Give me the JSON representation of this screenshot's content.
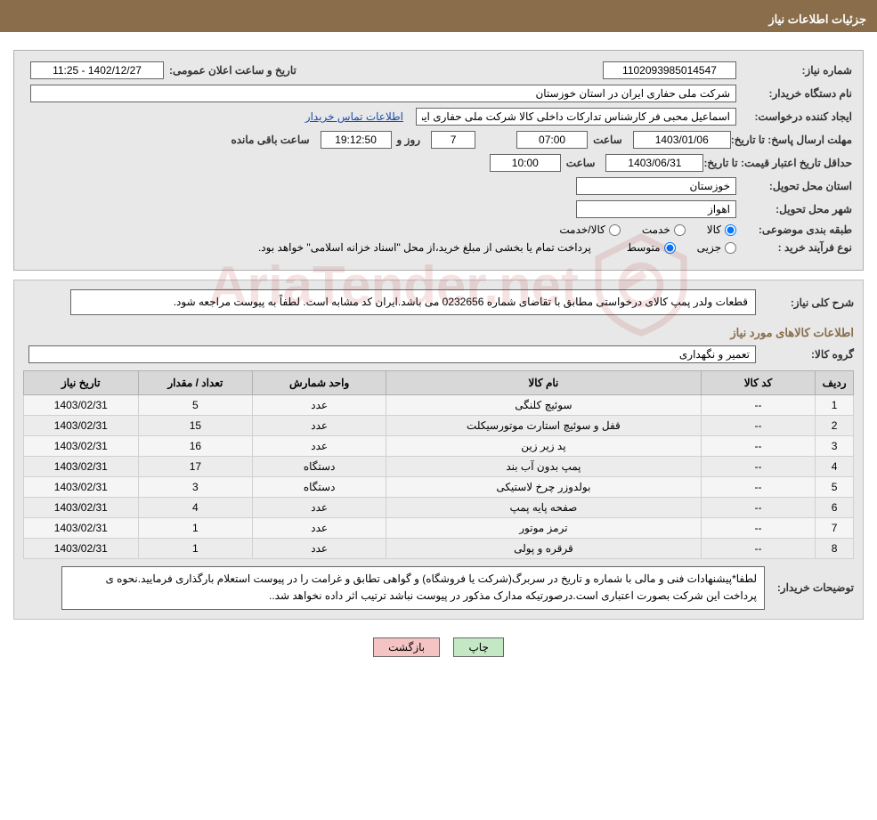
{
  "title_bar": "جزئیات اطلاعات نیاز",
  "fields": {
    "need_number_label": "شماره نیاز:",
    "need_number": "1102093985014547",
    "announce_label": "تاریخ و ساعت اعلان عمومی:",
    "announce_value": "1402/12/27 - 11:25",
    "buyer_org_label": "نام دستگاه خریدار:",
    "buyer_org": "شرکت ملی حفاری ایران در استان خوزستان",
    "requester_label": "ایجاد کننده درخواست:",
    "requester": "اسماعیل محبی فر کارشناس تدارکات داخلی کالا شرکت ملی حفاری ایران در اس",
    "contact_link": "اطلاعات تماس خریدار",
    "deadline_label": "مهلت ارسال پاسخ: تا تاریخ:",
    "deadline_date": "1403/01/06",
    "time_label": "ساعت",
    "deadline_time": "07:00",
    "days_remain": "7",
    "days_remain_label": "روز و",
    "time_remain": "19:12:50",
    "time_remain_label": "ساعت باقی مانده",
    "price_valid_label": "حداقل تاریخ اعتبار قیمت: تا تاریخ:",
    "price_valid_date": "1403/06/31",
    "price_valid_time": "10:00",
    "province_label": "استان محل تحویل:",
    "province": "خوزستان",
    "city_label": "شهر محل تحویل:",
    "city": "اهواز",
    "category_label": "طبقه بندی موضوعی:",
    "category_options": {
      "goods": "کالا",
      "service": "خدمت",
      "goods_service": "کالا/خدمت"
    },
    "purchase_type_label": "نوع فرآیند خرید :",
    "purchase_type_options": {
      "partial": "جزیی",
      "medium": "متوسط"
    },
    "purchase_note": "پرداخت تمام یا بخشی از مبلغ خرید،از محل \"اسناد خزانه اسلامی\" خواهد بود."
  },
  "need_desc": {
    "label": "شرح کلی نیاز:",
    "text": "قطعات ولدر پمپ کالای درخواستی مطابق با تقاضای شماره 0232656 می باشد.ایران کد مشابه است. لطفاً به پیوست مراجعه شود."
  },
  "items_section": {
    "title": "اطلاعات کالاهای مورد نیاز",
    "group_label": "گروه کالا:",
    "group_value": "تعمیر و نگهداری"
  },
  "table": {
    "headers": {
      "row": "ردیف",
      "code": "کد کالا",
      "name": "نام کالا",
      "unit": "واحد شمارش",
      "qty": "تعداد / مقدار",
      "date": "تاریخ نیاز"
    },
    "rows": [
      {
        "row": "1",
        "code": "--",
        "name": "سوئیچ کلنگی",
        "unit": "عدد",
        "qty": "5",
        "date": "1403/02/31"
      },
      {
        "row": "2",
        "code": "--",
        "name": "قفل و سوئیچ استارت موتورسیکلت",
        "unit": "عدد",
        "qty": "15",
        "date": "1403/02/31"
      },
      {
        "row": "3",
        "code": "--",
        "name": "پد زیر زین",
        "unit": "عدد",
        "qty": "16",
        "date": "1403/02/31"
      },
      {
        "row": "4",
        "code": "--",
        "name": "پمپ بدون آب بند",
        "unit": "دستگاه",
        "qty": "17",
        "date": "1403/02/31"
      },
      {
        "row": "5",
        "code": "--",
        "name": "بولدوزر چرخ لاستیکی",
        "unit": "دستگاه",
        "qty": "3",
        "date": "1403/02/31"
      },
      {
        "row": "6",
        "code": "--",
        "name": "صفحه پایه پمپ",
        "unit": "عدد",
        "qty": "4",
        "date": "1403/02/31"
      },
      {
        "row": "7",
        "code": "--",
        "name": "ترمز موتور",
        "unit": "عدد",
        "qty": "1",
        "date": "1403/02/31"
      },
      {
        "row": "8",
        "code": "--",
        "name": "قرقره و پولی",
        "unit": "عدد",
        "qty": "1",
        "date": "1403/02/31"
      }
    ]
  },
  "buyer_note": {
    "label": "توضیحات خریدار:",
    "text": "لطفا*پیشنهادات فنی و مالی با شماره و تاریخ در سربرگ(شرکت یا فروشگاه) و گواهی تطابق و غرامت را در پیوست استعلام بارگذاری فرمایید.نحوه ی پرداخت این شرکت بصورت اعتباری است.درصورتیکه مدارک مذکور در پیوست نباشد ترتیب اثر داده نخواهد شد.."
  },
  "buttons": {
    "print": "چاپ",
    "back": "بازگشت"
  },
  "watermark_text": "AriaTender.net",
  "colors": {
    "header_brown": "#8a6d4a",
    "panel_bg": "#e8e8e8",
    "link_blue": "#1a4ba8",
    "btn_print": "#c4e8c4",
    "btn_back": "#f4c4c4"
  }
}
